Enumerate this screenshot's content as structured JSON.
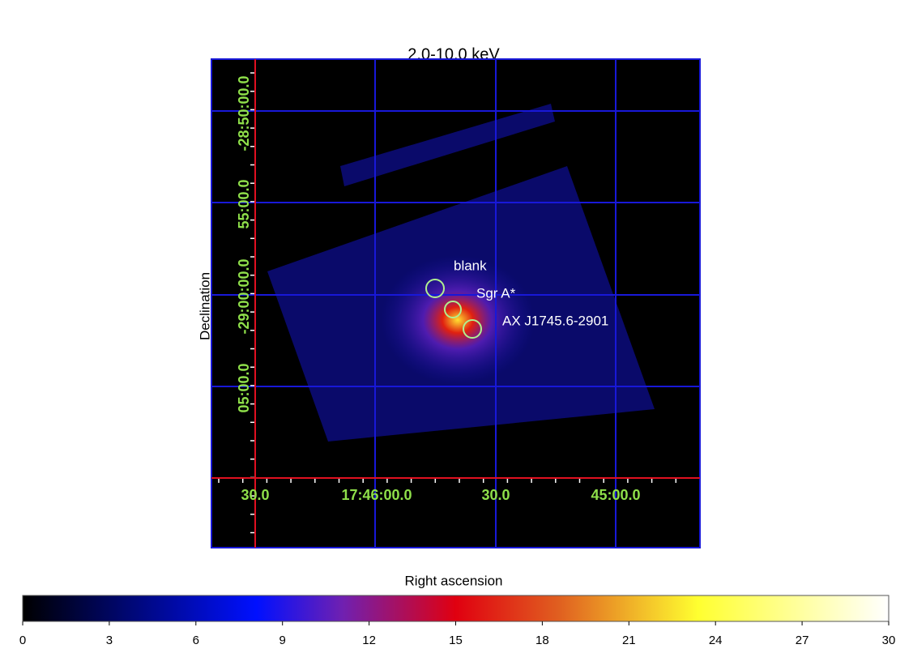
{
  "title": "2.0-10.0 keV",
  "x_axis_label": "Right ascension",
  "y_axis_label": "Declination",
  "dec_labels": [
    "-28:50:00.0",
    "55:00.0",
    "-29:00:00.0",
    "05:00.0"
  ],
  "ra_labels": [
    "30.0",
    "17:46:00.0",
    "30.0",
    "45:00.0"
  ],
  "regions": [
    {
      "label": "blank"
    },
    {
      "label": "Sgr A*"
    },
    {
      "label": "AX J1745.6-2901"
    }
  ],
  "colorbar_ticks": [
    0,
    3,
    6,
    9,
    12,
    15,
    18,
    21,
    24,
    27,
    30
  ]
}
